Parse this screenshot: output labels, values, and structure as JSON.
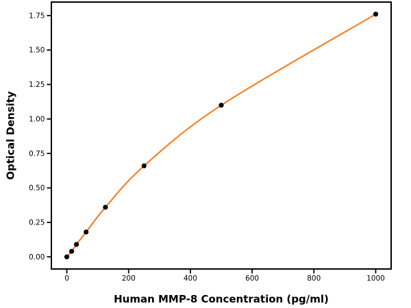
{
  "chart_data": {
    "type": "scatter",
    "title": "",
    "xlabel": "Human MMP-8 Concentration (pg/ml)",
    "ylabel": "Optical Density",
    "x": [
      0,
      15.6,
      31.2,
      62.5,
      125,
      250,
      500,
      1000
    ],
    "y": [
      0.0,
      0.04,
      0.09,
      0.18,
      0.36,
      0.66,
      1.1,
      1.76
    ],
    "series": [
      {
        "name": "standards",
        "kind": "scatter",
        "color": "#000000"
      },
      {
        "name": "fit-curve",
        "kind": "line",
        "color": "#ff7514"
      }
    ],
    "xticks": [
      0,
      200,
      400,
      600,
      800,
      1000
    ],
    "yticks": [
      0,
      0.25,
      0.5,
      0.75,
      1.0,
      1.25,
      1.5,
      1.75
    ],
    "ytick_labels": [
      "0.00",
      "0.25",
      "0.50",
      "0.75",
      "1.00",
      "1.25",
      "1.50",
      "1.75"
    ],
    "xlim": [
      -50,
      1050
    ],
    "ylim": [
      -0.088,
      1.848
    ],
    "grid": false,
    "legend": "none",
    "spine_color": "#000000",
    "background": "#ffffff"
  }
}
